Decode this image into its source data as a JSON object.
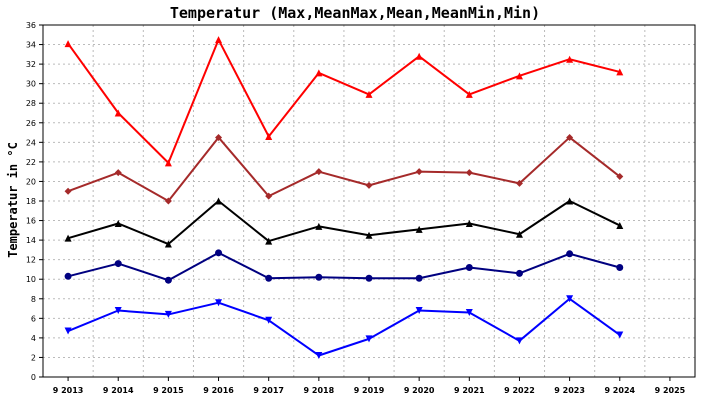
{
  "chart_data": {
    "type": "line",
    "title": "Temperatur (Max,MeanMax,Mean,MeanMin,Min)",
    "ylabel": "Temperatur in °C",
    "xlabel": "",
    "ylim": [
      0,
      36
    ],
    "yticks": [
      0,
      2,
      4,
      6,
      8,
      10,
      12,
      14,
      16,
      18,
      20,
      22,
      24,
      26,
      28,
      30,
      32,
      34,
      36
    ],
    "categories": [
      "9 2013",
      "9 2014",
      "9 2015",
      "9 2016",
      "9 2017",
      "9 2018",
      "9 2019",
      "9 2020",
      "9 2021",
      "9 2022",
      "9 2023",
      "9 2024",
      "9 2025"
    ],
    "grid": true,
    "series": [
      {
        "color": "#ff0000",
        "marker": "triangle",
        "values": [
          34.1,
          27.0,
          21.9,
          34.5,
          24.6,
          31.1,
          28.9,
          32.8,
          28.9,
          30.8,
          32.5,
          31.2,
          null
        ]
      },
      {
        "color": "#a52a2a",
        "marker": "diamond",
        "values": [
          19.0,
          20.9,
          18.0,
          24.5,
          18.5,
          21.0,
          19.6,
          21.0,
          20.9,
          19.8,
          24.5,
          20.5,
          null
        ]
      },
      {
        "color": "#000000",
        "marker": "triangle",
        "values": [
          14.2,
          15.7,
          13.6,
          18.0,
          13.9,
          15.4,
          14.5,
          15.1,
          15.7,
          14.6,
          18.0,
          15.5,
          null
        ]
      },
      {
        "color": "#000080",
        "marker": "circle",
        "values": [
          10.3,
          11.6,
          9.9,
          12.7,
          10.1,
          10.2,
          10.1,
          10.1,
          11.2,
          10.6,
          12.6,
          11.2,
          null
        ]
      },
      {
        "color": "#0000ff",
        "marker": "triangle-down",
        "values": [
          4.7,
          6.8,
          6.4,
          7.6,
          5.8,
          2.2,
          3.9,
          6.8,
          6.6,
          3.7,
          8.0,
          4.3,
          null
        ]
      }
    ]
  }
}
